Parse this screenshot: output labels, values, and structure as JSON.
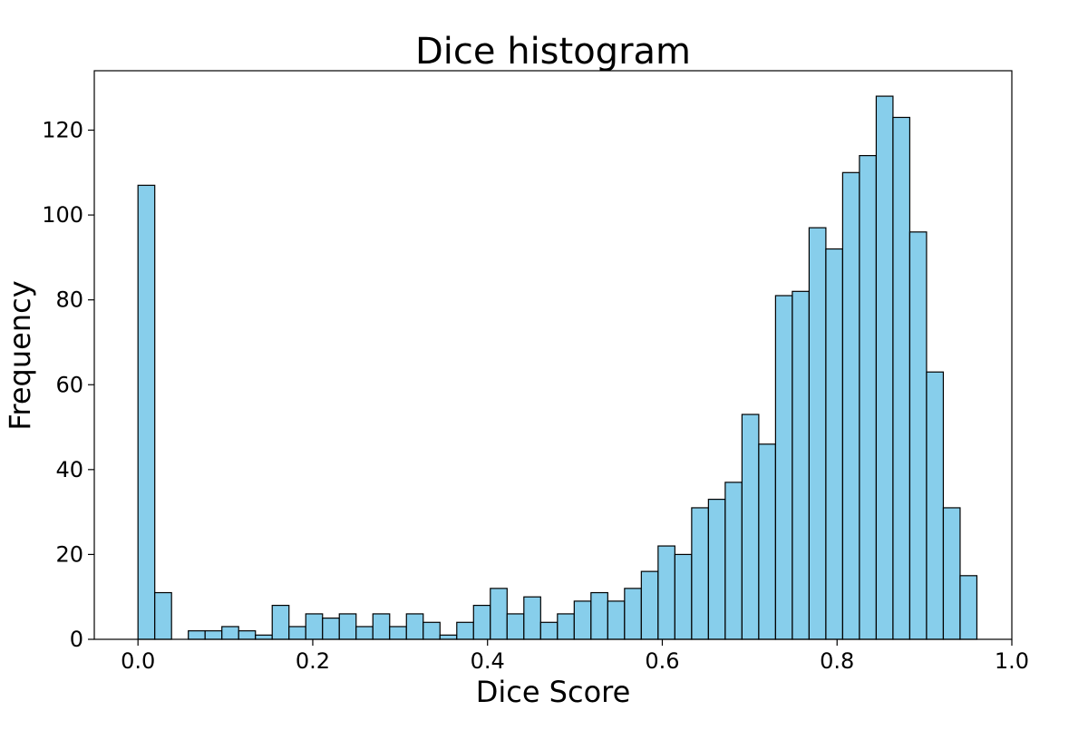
{
  "chart_data": {
    "type": "bar",
    "title": "Dice histogram",
    "xlabel": "Dice Score",
    "ylabel": "Frequency",
    "xlim": [
      -0.05,
      1.0
    ],
    "ylim": [
      0,
      134
    ],
    "bin_start": 0.0,
    "bin_width": 0.0192,
    "values": [
      107,
      11,
      0,
      2,
      2,
      3,
      2,
      1,
      8,
      3,
      6,
      5,
      6,
      3,
      6,
      3,
      6,
      4,
      1,
      4,
      8,
      12,
      6,
      10,
      4,
      6,
      9,
      11,
      9,
      12,
      16,
      22,
      20,
      31,
      33,
      37,
      53,
      46,
      81,
      82,
      97,
      92,
      110,
      114,
      128,
      123,
      96,
      63,
      31,
      15
    ],
    "xticks": [
      0.0,
      0.2,
      0.4,
      0.6,
      0.8,
      1.0
    ],
    "xtick_labels": [
      "0.0",
      "0.2",
      "0.4",
      "0.6",
      "0.8",
      "1.0"
    ],
    "yticks": [
      0,
      20,
      40,
      60,
      80,
      100,
      120
    ],
    "ytick_labels": [
      "0",
      "20",
      "40",
      "60",
      "80",
      "100",
      "120"
    ],
    "bar_color": "#87ceeb",
    "edge_color": "#000000",
    "grid": false,
    "legend": "none"
  }
}
